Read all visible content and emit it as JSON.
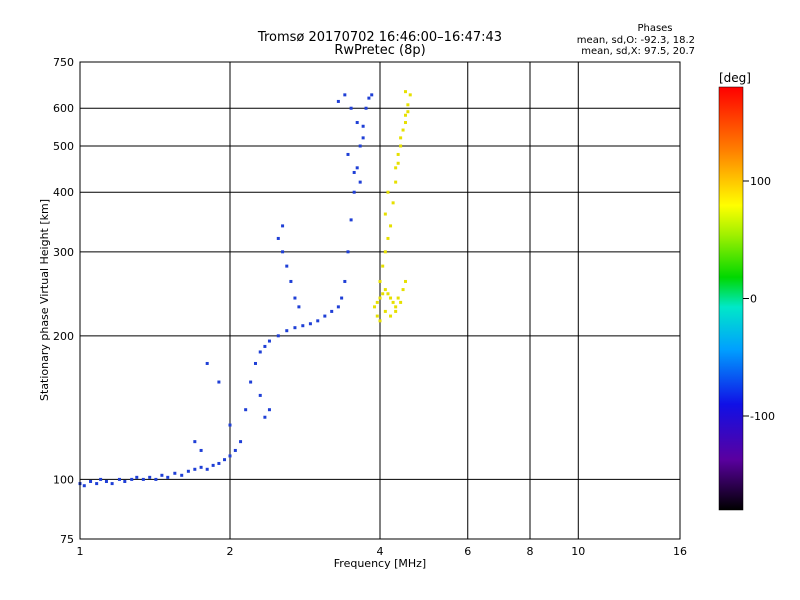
{
  "chart_data": {
    "type": "scatter",
    "title": "Tromsø 20170702 16:46:00–16:47:43",
    "subtitle": "RwPretec (8p)",
    "xlabel": "Frequency [MHz]",
    "ylabel": "Stationary phase Virtual Height [km]",
    "x_scale": "log",
    "y_scale": "log",
    "xlim": [
      1,
      16
    ],
    "ylim": [
      75,
      750
    ],
    "x_ticks": [
      1,
      2,
      4,
      6,
      8,
      10,
      16
    ],
    "x_tick_labels": [
      "1",
      "2",
      "4",
      "6",
      "8",
      "10",
      "16"
    ],
    "y_ticks": [
      75,
      100,
      200,
      300,
      400,
      500,
      600,
      750
    ],
    "y_tick_labels": [
      "75",
      "100",
      "200",
      "300",
      "400",
      "500",
      "600",
      "750"
    ],
    "grid": true,
    "stats": {
      "heading": "Phases",
      "line_o": "mean, sd,O: -92.3, 18.2",
      "line_x": "mean, sd,X:  97.5, 20.7"
    },
    "colorbar": {
      "label": "[deg]",
      "range": [
        -180,
        180
      ],
      "ticks": [
        100,
        0,
        -100
      ],
      "tick_labels": [
        "100",
        "0",
        "-100"
      ],
      "colormap": "rainbow (black-purple-blue-cyan-green-yellow-red)"
    },
    "series": [
      {
        "mode": "O",
        "phase_deg": -100,
        "color": "#1f3fd6",
        "points": [
          [
            1.0,
            98
          ],
          [
            1.02,
            97
          ],
          [
            1.05,
            99
          ],
          [
            1.08,
            98
          ],
          [
            1.1,
            100
          ],
          [
            1.13,
            99
          ],
          [
            1.16,
            98
          ],
          [
            1.2,
            100
          ],
          [
            1.23,
            99
          ],
          [
            1.27,
            100
          ],
          [
            1.3,
            101
          ],
          [
            1.34,
            100
          ],
          [
            1.38,
            101
          ],
          [
            1.42,
            100
          ],
          [
            1.46,
            102
          ],
          [
            1.5,
            101
          ],
          [
            1.55,
            103
          ],
          [
            1.6,
            102
          ],
          [
            1.65,
            104
          ],
          [
            1.7,
            105
          ],
          [
            1.75,
            106
          ],
          [
            1.8,
            105
          ],
          [
            1.85,
            107
          ],
          [
            1.9,
            108
          ],
          [
            1.95,
            110
          ],
          [
            2.0,
            112
          ],
          [
            2.05,
            115
          ],
          [
            2.1,
            120
          ],
          [
            2.15,
            140
          ],
          [
            2.2,
            160
          ],
          [
            2.25,
            175
          ],
          [
            2.3,
            185
          ],
          [
            2.35,
            190
          ],
          [
            2.4,
            195
          ],
          [
            2.5,
            200
          ],
          [
            2.6,
            205
          ],
          [
            2.7,
            208
          ],
          [
            2.8,
            210
          ],
          [
            2.9,
            212
          ],
          [
            3.0,
            215
          ],
          [
            3.1,
            220
          ],
          [
            3.2,
            225
          ],
          [
            3.3,
            230
          ],
          [
            3.35,
            240
          ],
          [
            3.4,
            260
          ],
          [
            3.45,
            300
          ],
          [
            3.5,
            350
          ],
          [
            3.55,
            400
          ],
          [
            3.6,
            450
          ],
          [
            3.65,
            500
          ],
          [
            3.7,
            550
          ],
          [
            3.75,
            600
          ],
          [
            3.8,
            630
          ],
          [
            3.85,
            640
          ],
          [
            2.55,
            300
          ],
          [
            2.6,
            280
          ],
          [
            2.65,
            260
          ],
          [
            2.7,
            240
          ],
          [
            2.75,
            230
          ],
          [
            2.5,
            320
          ],
          [
            2.55,
            340
          ],
          [
            3.3,
            620
          ],
          [
            3.4,
            640
          ],
          [
            3.5,
            600
          ],
          [
            3.6,
            560
          ],
          [
            3.7,
            520
          ],
          [
            3.45,
            480
          ],
          [
            3.55,
            440
          ],
          [
            3.65,
            420
          ],
          [
            1.8,
            175
          ],
          [
            1.9,
            160
          ],
          [
            2.0,
            130
          ],
          [
            1.7,
            120
          ],
          [
            1.75,
            115
          ],
          [
            2.3,
            150
          ],
          [
            2.4,
            140
          ],
          [
            2.35,
            135
          ]
        ]
      },
      {
        "mode": "X",
        "phase_deg": 98,
        "color": "#e6e000",
        "points": [
          [
            3.9,
            230
          ],
          [
            3.95,
            235
          ],
          [
            4.0,
            240
          ],
          [
            4.05,
            245
          ],
          [
            4.1,
            250
          ],
          [
            4.15,
            245
          ],
          [
            4.2,
            240
          ],
          [
            4.25,
            235
          ],
          [
            4.3,
            230
          ],
          [
            4.35,
            240
          ],
          [
            4.0,
            260
          ],
          [
            4.05,
            280
          ],
          [
            4.1,
            300
          ],
          [
            4.15,
            320
          ],
          [
            4.2,
            340
          ],
          [
            4.25,
            380
          ],
          [
            4.3,
            420
          ],
          [
            4.35,
            460
          ],
          [
            4.4,
            500
          ],
          [
            4.45,
            540
          ],
          [
            4.5,
            580
          ],
          [
            4.55,
            610
          ],
          [
            4.6,
            640
          ],
          [
            4.5,
            650
          ],
          [
            3.95,
            220
          ],
          [
            4.0,
            215
          ],
          [
            4.1,
            225
          ],
          [
            4.2,
            220
          ],
          [
            4.3,
            225
          ],
          [
            4.4,
            235
          ],
          [
            4.45,
            250
          ],
          [
            4.5,
            260
          ],
          [
            4.1,
            360
          ],
          [
            4.15,
            400
          ],
          [
            4.3,
            450
          ],
          [
            4.35,
            480
          ],
          [
            4.4,
            520
          ],
          [
            4.5,
            560
          ],
          [
            4.55,
            590
          ]
        ]
      }
    ]
  }
}
